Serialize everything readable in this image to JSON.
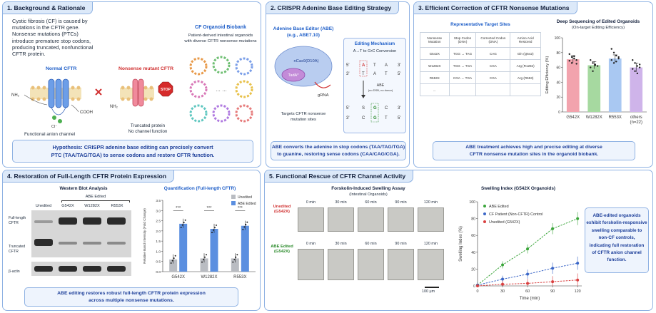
{
  "panel1": {
    "title": "1. Background & Rationale",
    "intro": [
      "Cystic fibrosis (CF) is caused by",
      "mutations in the CFTR gene.",
      "Nonsense mutations (PTCs)",
      "introduce premature stop codons,",
      "producing truncated, nonfunctional",
      "CFTR protein."
    ],
    "normal_label": "Normal CFTR",
    "mutant_label": "Nonsense mutant CFTR",
    "nh2": "NH₂",
    "cooh": "COOH",
    "cl": "Cl⁻",
    "stop": "STOP",
    "normal_caption": "Functional anion channel",
    "mutant_caption": [
      "Truncated protein",
      "No channel function"
    ],
    "biobank_title": "CF Organoid Biobank",
    "biobank_sub": [
      "Patient-derived intestinal organoids",
      "with diverse CFTR nonsense mutations"
    ],
    "dots": "… …",
    "hypothesis": [
      "Hypothesis: CRISPR adenine base editing can precisely convert",
      "PTC (TAA/TAG/TGA) to sense codons and restore CFTR function."
    ]
  },
  "panel2": {
    "title": "2. CRISPR Adenine Base Editing Strategy",
    "abe_title": "Adenine Base Editor (ABE)",
    "abe_sub": "(e.g., ABE7.10)",
    "ncas9": "nCas9(D10A)",
    "tada": "TadA*",
    "grna": "gRNA",
    "targets": [
      "Targets CFTR nonsense",
      "mutation sites"
    ],
    "mech_title": "Editing Mechanism",
    "mech_sub": "A→T to G•C Conversion",
    "abe_arrow": "ABE",
    "abe_arrow_sub": "(no DSB, no donor)",
    "seq_top": [
      "5'",
      "A",
      "T",
      "A",
      "3'"
    ],
    "seq_bot": [
      "3'",
      "T",
      "A",
      "T",
      "5'"
    ],
    "seq2_top": [
      "5'",
      "S",
      "G",
      "C",
      "3'"
    ],
    "seq2_bot": [
      "3'",
      "C",
      "G",
      "T",
      "5'"
    ],
    "caption": [
      "ABE converts the adenine in stop codons (TAA/TAG/TGA)",
      "to guanine, restoring sense codons (CAA/CAG/CGA)."
    ]
  },
  "panel3": {
    "title": "3. Efficient Correction of CFTR Nonsense Mutations",
    "table_title": "Representative Target Sites",
    "headers": [
      "Nonsense Mutation",
      "Stop Codon (DNA)",
      "Corrected Codon (DNA)",
      "Amino Acid Restored"
    ],
    "rows": [
      [
        "G542X",
        "TGG → TAG",
        "CAG",
        "Gln (Q542)"
      ],
      [
        "W1282X",
        "TGG → TGA",
        "CGA",
        "Arg (R1282)"
      ],
      [
        "R553X",
        "CGA → TGA",
        "CGA",
        "Arg (R553)"
      ],
      [
        "...",
        "",
        "",
        ""
      ]
    ],
    "caption": [
      "ABE treatment achieves high and precise editing at diverse",
      "CFTR nonsense mutation sites in the organoid biobank."
    ]
  },
  "panel4": {
    "title": "4. Restoration of Full-Length CFTR Protein Expression",
    "wb_title": "Western Blot Analysis",
    "abe_edited": "ABE Edited",
    "lanes": [
      "Unedited",
      "G542X",
      "W1282X",
      "R553X"
    ],
    "row_labels": [
      "Full-length CFTR",
      "Truncated CFTR",
      "β-actin"
    ],
    "caption": [
      "ABE editing restores robust full-length CFTR protein expression",
      "across multiple nonsense mutations."
    ]
  },
  "panel5": {
    "title": "5. Functional Rescue of CFTR Channel Activity",
    "assay_title": "Forskolin-Induced Swelling Assay",
    "assay_sub": "(Intestinal Organoids)",
    "row1_label": [
      "Unedited",
      "(G542X)"
    ],
    "row2_label": [
      "ABE Edited",
      "(G542X)"
    ],
    "times": [
      "0 min",
      "30 min",
      "60 min",
      "90 min",
      "120 min"
    ],
    "scale": "100 μm",
    "callout": [
      "ABE-edited organoids",
      "exhibit forskolin-responsive",
      "swelling comparable to",
      "non-CF controls,",
      "indicating full restoration",
      "of CFTR anion channel",
      "function."
    ]
  },
  "chart_data": [
    {
      "type": "bar",
      "title": "Deep Sequencing of Edited Organoids",
      "subtitle": "(On-target Editing Efficiency)",
      "ylabel": "Editing Efficiency (%)",
      "categories": [
        "G542X",
        "W1282X",
        "R553X",
        "others\n(n=22)"
      ],
      "values": [
        71,
        63,
        72,
        60
      ],
      "errors": [
        5,
        5,
        5,
        6
      ],
      "points": [
        [
          78,
          74,
          72,
          70,
          69,
          66,
          75,
          65
        ],
        [
          70,
          66,
          64,
          62,
          60,
          55,
          63
        ],
        [
          85,
          80,
          76,
          72,
          70,
          66,
          68,
          74
        ],
        [
          70,
          66,
          62,
          60,
          58,
          55,
          52,
          64
        ]
      ],
      "colors": [
        "#f2a3ad",
        "#a6d9a0",
        "#a9c8f2",
        "#cfb4ea"
      ],
      "ylim": [
        0,
        100
      ],
      "yticks": [
        0,
        20,
        40,
        60,
        80,
        100
      ]
    },
    {
      "type": "bar",
      "title": "Quantification (Full-length CFTR)",
      "ylabel": "Relative Band Intensity (Fold Change)",
      "categories": [
        "G542X",
        "W1282X",
        "R553X"
      ],
      "series": [
        {
          "name": "Unedited",
          "values": [
            0.6,
            0.65,
            0.65
          ],
          "color": "#b9bcc2"
        },
        {
          "name": "ABE Edited",
          "values": [
            2.35,
            2.1,
            2.25
          ],
          "color": "#5b8fe0"
        }
      ],
      "significance": [
        "***",
        "***",
        "***"
      ],
      "ylim": [
        0,
        3.5
      ],
      "yticks": [
        0,
        0.5,
        1.0,
        1.5,
        2.0,
        2.5,
        3.0,
        3.5
      ]
    },
    {
      "type": "line",
      "title": "Swelling Index (G542X Organoids)",
      "xlabel": "Time (min)",
      "ylabel": "Swelling Index (%)",
      "x": [
        0,
        30,
        60,
        90,
        120
      ],
      "series": [
        {
          "name": "ABE Edited",
          "values": [
            1,
            25,
            44,
            68,
            80
          ],
          "color": "#3aa53a"
        },
        {
          "name": "CF Patient (Non-CFTR) Control",
          "values": [
            1,
            8,
            14,
            21,
            27
          ],
          "color": "#3a66c7"
        },
        {
          "name": "Unedited (G542X)",
          "values": [
            0,
            2,
            3,
            5,
            7
          ],
          "color": "#d94040"
        }
      ],
      "ylim": [
        0,
        100
      ],
      "yticks": [
        0,
        20,
        40,
        60,
        80,
        100
      ]
    }
  ]
}
